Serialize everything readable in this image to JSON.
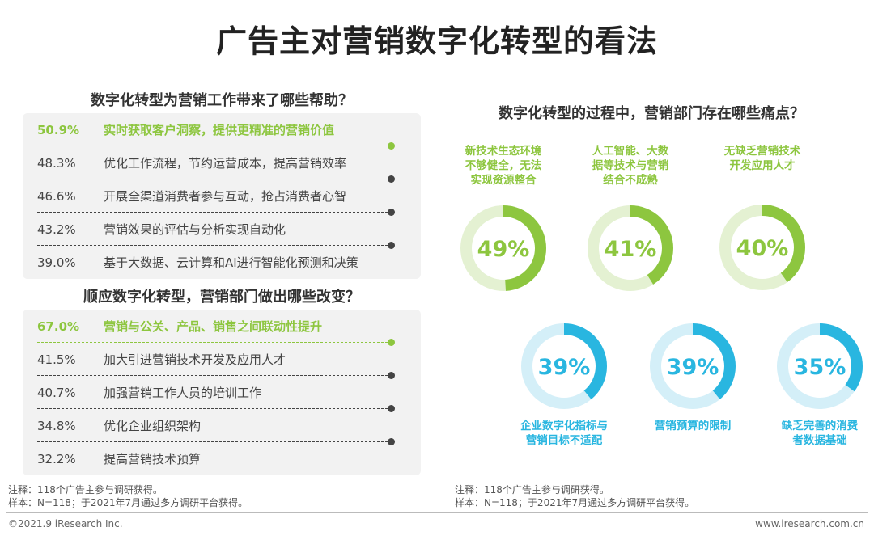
{
  "title": "广告主对营销数字化转型的看法",
  "chart_data": [
    {
      "type": "bar",
      "title": "数字化转型为营销工作带来了哪些帮助？",
      "unit": "%",
      "items": [
        {
          "value": "50.9%",
          "label": "实时获取客户洞察，提供更精准的营销价值",
          "highlight": true
        },
        {
          "value": "48.3%",
          "label": "优化工作流程，节约运营成本，提高营销效率",
          "highlight": false
        },
        {
          "value": "46.6%",
          "label": "开展全渠道消费者参与互动，抢占消费者心智",
          "highlight": false
        },
        {
          "value": "43.2%",
          "label": "营销效果的评估与分析实现自动化",
          "highlight": false
        },
        {
          "value": "39.0%",
          "label": "基于大数据、云计算和AI进行智能化预测和决策",
          "highlight": false
        }
      ]
    },
    {
      "type": "bar",
      "title": "顺应数字化转型，营销部门做出哪些改变？",
      "unit": "%",
      "items": [
        {
          "value": "67.0%",
          "label": "营销与公关、产品、销售之间联动性提升",
          "highlight": true
        },
        {
          "value": "41.5%",
          "label": "加大引进营销技术开发及应用人才",
          "highlight": false
        },
        {
          "value": "40.7%",
          "label": "加强营销工作人员的培训工作",
          "highlight": false
        },
        {
          "value": "34.8%",
          "label": "优化企业组织架构",
          "highlight": false
        },
        {
          "value": "32.2%",
          "label": "提高营销技术预算",
          "highlight": false
        }
      ]
    },
    {
      "type": "pie",
      "title": "数字化转型的过程中，营销部门存在哪些痛点？",
      "items": [
        {
          "percent": 49,
          "text": "49%",
          "label_lines": [
            "新技术生态环境",
            "不够健全，无法",
            "实现资源整合"
          ],
          "color": "#8dc63f",
          "track": "#e4f1d2"
        },
        {
          "percent": 41,
          "text": "41%",
          "label_lines": [
            "人工智能、大数",
            "据等技术与营销",
            "结合不成熟"
          ],
          "color": "#8dc63f",
          "track": "#e4f1d2"
        },
        {
          "percent": 40,
          "text": "40%",
          "label_lines": [
            "无缺乏营销技术",
            "开发应用人才"
          ],
          "color": "#8dc63f",
          "track": "#e4f1d2"
        },
        {
          "percent": 39,
          "text": "39%",
          "label_lines": [
            "企业数字化指标与",
            "营销目标不适配"
          ],
          "color": "#29b6e0",
          "track": "#d4eff8"
        },
        {
          "percent": 39,
          "text": "39%",
          "label_lines": [
            "营销预算的限制"
          ],
          "color": "#29b6e0",
          "track": "#d4eff8"
        },
        {
          "percent": 35,
          "text": "35%",
          "label_lines": [
            "缺乏完善的消费",
            "者数据基础"
          ],
          "color": "#29b6e0",
          "track": "#d4eff8"
        }
      ]
    }
  ],
  "notes": {
    "left_note": "注释：118个广告主参与调研获得。",
    "left_sample": "样本：N=118；于2021年7月通过多方调研平台获得。",
    "right_note": "注释：118个广告主参与调研获得。",
    "right_sample": "样本：N=118；于2021年7月通过多方调研平台获得。"
  },
  "footer": {
    "copyright": "©2021.9 iResearch Inc.",
    "website": "www.iresearch.com.cn"
  }
}
